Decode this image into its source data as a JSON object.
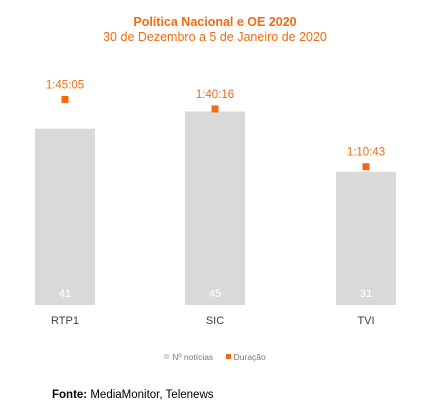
{
  "title": "Política Nacional e  OE 2020",
  "subtitle": "30 de Dezembro a 5 de Janeiro de 2020",
  "source_label": "Fonte:",
  "source_value": "MediaMonitor, Telenews",
  "colors": {
    "bar": "#d9d9d9",
    "marker": "#f26b10",
    "bar_text": "#ffffff",
    "category_text": "#404040"
  },
  "chart_data": {
    "type": "bar",
    "categories": [
      "RTP1",
      "SIC",
      "TVI"
    ],
    "series": [
      {
        "name": "Nº notícias",
        "type": "bar",
        "values": [
          41,
          45,
          31
        ],
        "labels": [
          "41",
          "45",
          "31"
        ]
      },
      {
        "name": "Duração",
        "type": "scatter",
        "values_seconds": [
          6305,
          6016,
          4243
        ],
        "labels": [
          "1:45:05",
          "1:40:16",
          "1:10:43"
        ]
      }
    ],
    "legend": "bottom",
    "grid": false
  }
}
